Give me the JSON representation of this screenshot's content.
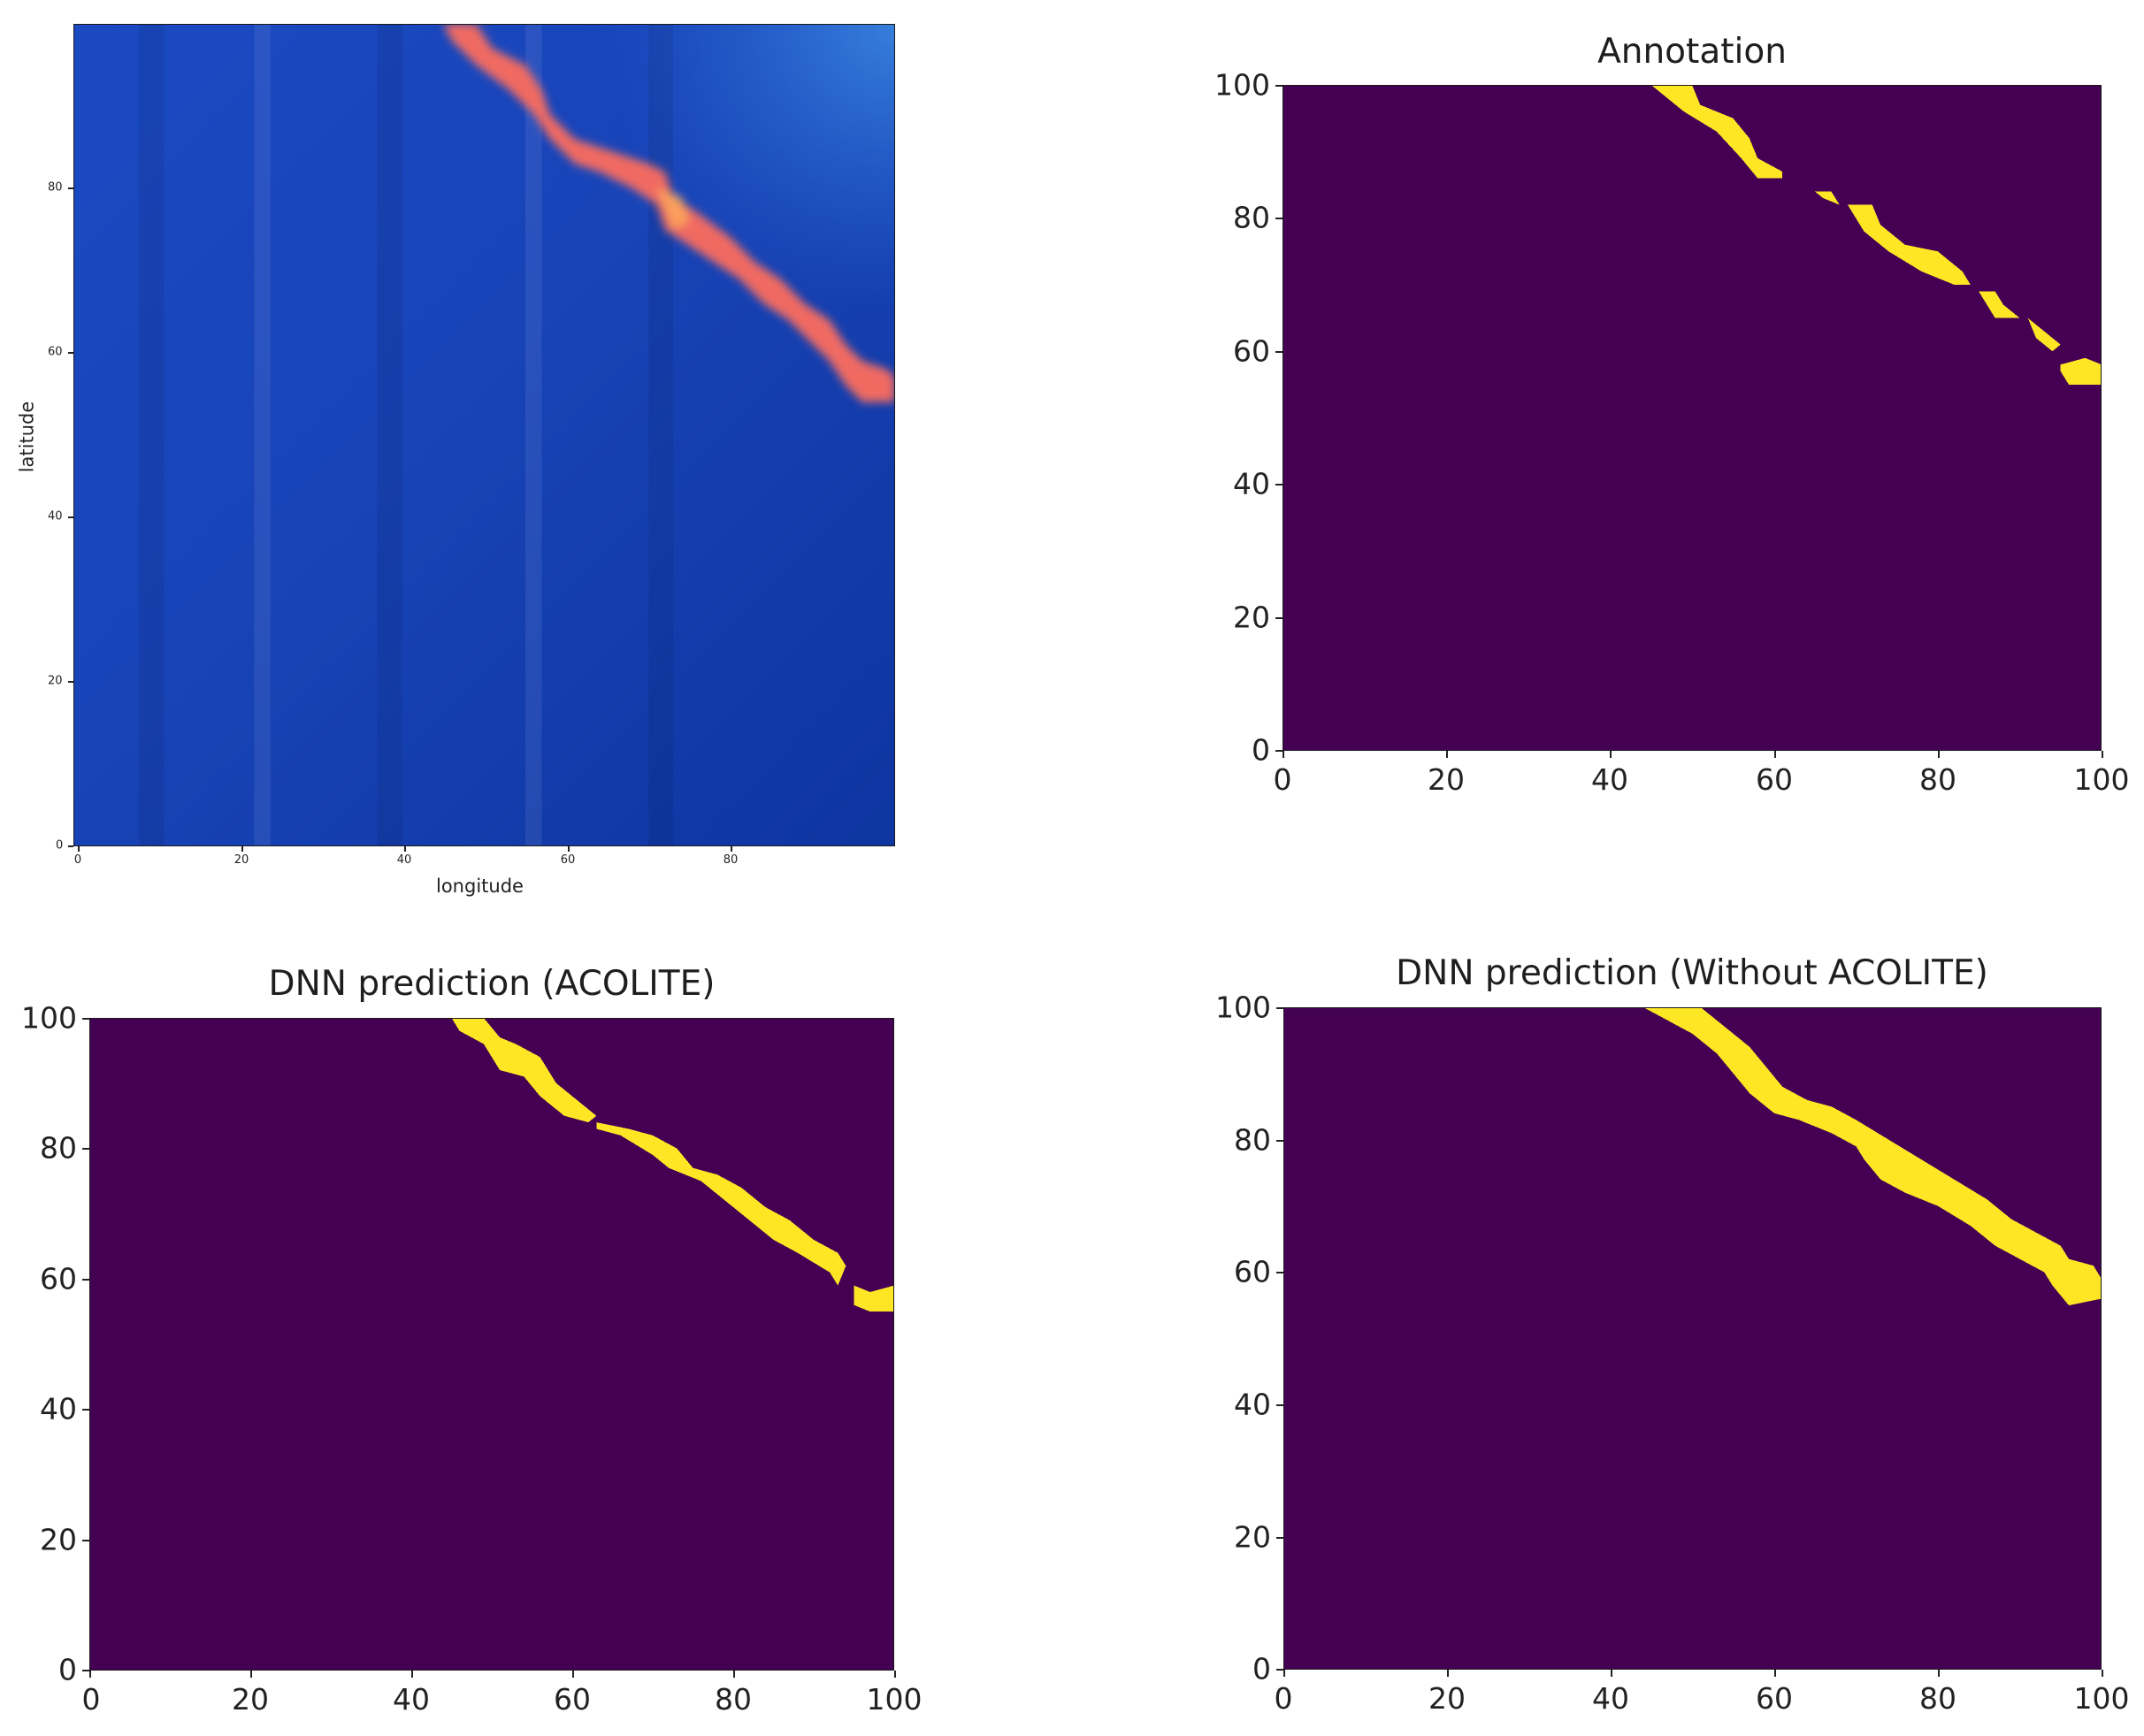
{
  "figure": {
    "panels": [
      {
        "id": "satellite",
        "title": "",
        "xlabel": "longitude",
        "ylabel": "latitude",
        "xticks": [
          "0",
          "20",
          "40",
          "60",
          "80"
        ],
        "yticks": [
          "0",
          "20",
          "40",
          "60",
          "80"
        ]
      },
      {
        "id": "annotation",
        "title": "Annotation",
        "xlabel": "",
        "ylabel": "",
        "xticks": [
          "0",
          "20",
          "40",
          "60",
          "80",
          "100"
        ],
        "yticks": [
          "0",
          "20",
          "40",
          "60",
          "80",
          "100"
        ]
      },
      {
        "id": "dnn-acolite",
        "title": "DNN prediction (ACOLITE)",
        "xlabel": "",
        "ylabel": "",
        "xticks": [
          "0",
          "20",
          "40",
          "60",
          "80",
          "100"
        ],
        "yticks": [
          "0",
          "20",
          "40",
          "60",
          "80",
          "100"
        ]
      },
      {
        "id": "dnn-without-acolite",
        "title": "DNN prediction (Without ACOLITE)",
        "xlabel": "",
        "ylabel": "",
        "xticks": [
          "0",
          "20",
          "40",
          "60",
          "80",
          "100"
        ],
        "yticks": [
          "0",
          "20",
          "40",
          "60",
          "80",
          "100"
        ]
      }
    ]
  },
  "colors": {
    "mask_background": "#440154",
    "mask_foreground": "#fde725",
    "ocean_dark": "#0b2f9a",
    "ocean_mid": "#1643b5",
    "ocean_light": "#2a67d4",
    "plume": "#f0605a"
  },
  "chart_data": [
    {
      "type": "heatmap",
      "title": "",
      "description": "RGB satellite image of ocean (blue) with a diagonal red/orange plume line running from top-center to right edge",
      "xlabel": "longitude",
      "ylabel": "latitude",
      "xlim": [
        0,
        99
      ],
      "ylim": [
        0,
        99
      ],
      "xticks": [
        0,
        20,
        40,
        60,
        80
      ],
      "yticks": [
        0,
        20,
        40,
        60,
        80
      ],
      "grid": false,
      "feature_path": [
        [
          45,
          99
        ],
        [
          50,
          97
        ],
        [
          53,
          92
        ],
        [
          57,
          88
        ],
        [
          62,
          84
        ],
        [
          66,
          83
        ],
        [
          71,
          80
        ],
        [
          74,
          75
        ],
        [
          80,
          72
        ],
        [
          86,
          68
        ],
        [
          92,
          63
        ],
        [
          95,
          58
        ],
        [
          99,
          56
        ]
      ]
    },
    {
      "type": "heatmap",
      "title": "Annotation",
      "colormap": "viridis (binary)",
      "xlim": [
        0,
        100
      ],
      "ylim": [
        0,
        100
      ],
      "xticks": [
        0,
        20,
        40,
        60,
        80,
        100
      ],
      "yticks": [
        0,
        20,
        40,
        60,
        80,
        100
      ],
      "grid": false,
      "mask_segments": [
        [
          [
            45,
            100
          ],
          [
            50,
            100
          ],
          [
            51,
            97
          ],
          [
            55,
            95
          ],
          [
            57,
            92
          ],
          [
            58,
            89
          ],
          [
            61,
            87
          ],
          [
            61,
            86
          ],
          [
            58,
            86
          ],
          [
            56,
            89
          ],
          [
            53,
            93
          ],
          [
            49,
            96
          ],
          [
            46,
            99
          ]
        ],
        [
          [
            65,
            84
          ],
          [
            67,
            83
          ],
          [
            68,
            82
          ]
        ],
        [
          [
            69,
            82
          ],
          [
            72,
            82
          ],
          [
            73,
            79
          ],
          [
            76,
            76
          ],
          [
            80,
            75
          ],
          [
            83,
            72
          ],
          [
            84,
            70
          ],
          [
            82,
            70
          ],
          [
            78,
            72
          ],
          [
            74,
            75
          ],
          [
            71,
            78
          ]
        ],
        [
          [
            85,
            69
          ],
          [
            87,
            69
          ],
          [
            88,
            67
          ],
          [
            90,
            65
          ],
          [
            87,
            65
          ],
          [
            86,
            67
          ]
        ],
        [
          [
            91,
            65
          ],
          [
            93,
            63
          ],
          [
            95,
            61
          ],
          [
            94,
            60
          ],
          [
            92,
            62
          ]
        ],
        [
          [
            95,
            58
          ],
          [
            98,
            59
          ],
          [
            100,
            58
          ],
          [
            100,
            55
          ],
          [
            96,
            55
          ],
          [
            95,
            57
          ]
        ]
      ]
    },
    {
      "type": "heatmap",
      "title": "DNN prediction (ACOLITE)",
      "colormap": "viridis (binary)",
      "xlim": [
        0,
        100
      ],
      "ylim": [
        0,
        100
      ],
      "xticks": [
        0,
        20,
        40,
        60,
        80,
        100
      ],
      "yticks": [
        0,
        20,
        40,
        60,
        80,
        100
      ],
      "grid": false,
      "mask_segments": [
        [
          [
            45,
            100
          ],
          [
            49,
            100
          ],
          [
            51,
            97
          ],
          [
            53,
            96
          ],
          [
            56,
            94
          ],
          [
            58,
            90
          ],
          [
            61,
            87
          ],
          [
            63,
            85
          ],
          [
            62,
            84
          ],
          [
            59,
            85
          ],
          [
            56,
            88
          ],
          [
            54,
            91
          ],
          [
            51,
            92
          ],
          [
            49,
            96
          ],
          [
            46,
            98
          ]
        ],
        [
          [
            63,
            84
          ],
          [
            67,
            83
          ],
          [
            70,
            82
          ],
          [
            73,
            80
          ],
          [
            75,
            77
          ],
          [
            78,
            76
          ],
          [
            81,
            74
          ],
          [
            84,
            71
          ],
          [
            87,
            69
          ],
          [
            90,
            66
          ],
          [
            93,
            64
          ],
          [
            94,
            62
          ],
          [
            93,
            59
          ],
          [
            92,
            61
          ],
          [
            88,
            64
          ],
          [
            85,
            66
          ],
          [
            82,
            69
          ],
          [
            79,
            72
          ],
          [
            76,
            75
          ],
          [
            72,
            77
          ],
          [
            70,
            79
          ],
          [
            66,
            82
          ],
          [
            63,
            83
          ]
        ],
        [
          [
            95,
            59
          ],
          [
            97,
            58
          ],
          [
            100,
            59
          ],
          [
            100,
            55
          ],
          [
            97,
            55
          ],
          [
            95,
            56
          ]
        ]
      ]
    },
    {
      "type": "heatmap",
      "title": "DNN prediction (Without ACOLITE)",
      "colormap": "viridis (binary)",
      "xlim": [
        0,
        100
      ],
      "ylim": [
        0,
        100
      ],
      "xticks": [
        0,
        20,
        40,
        60,
        80,
        100
      ],
      "yticks": [
        0,
        20,
        40,
        60,
        80,
        100
      ],
      "grid": false,
      "mask_segments": [
        [
          [
            44,
            100
          ],
          [
            51,
            100
          ],
          [
            54,
            97
          ],
          [
            57,
            94
          ],
          [
            59,
            91
          ],
          [
            61,
            88
          ],
          [
            64,
            86
          ],
          [
            67,
            85
          ],
          [
            70,
            83
          ],
          [
            74,
            80
          ],
          [
            78,
            77
          ],
          [
            82,
            74
          ],
          [
            86,
            71
          ],
          [
            89,
            68
          ],
          [
            92,
            66
          ],
          [
            95,
            64
          ],
          [
            96,
            62
          ],
          [
            99,
            61
          ],
          [
            100,
            59
          ],
          [
            100,
            56
          ],
          [
            96,
            55
          ],
          [
            94,
            58
          ],
          [
            93,
            60
          ],
          [
            90,
            62
          ],
          [
            87,
            64
          ],
          [
            84,
            67
          ],
          [
            80,
            70
          ],
          [
            76,
            72
          ],
          [
            73,
            74
          ],
          [
            71,
            77
          ],
          [
            70,
            79
          ],
          [
            67,
            81
          ],
          [
            63,
            83
          ],
          [
            60,
            84
          ],
          [
            57,
            87
          ],
          [
            55,
            90
          ],
          [
            53,
            93
          ],
          [
            50,
            96
          ],
          [
            47,
            98
          ]
        ]
      ]
    }
  ]
}
